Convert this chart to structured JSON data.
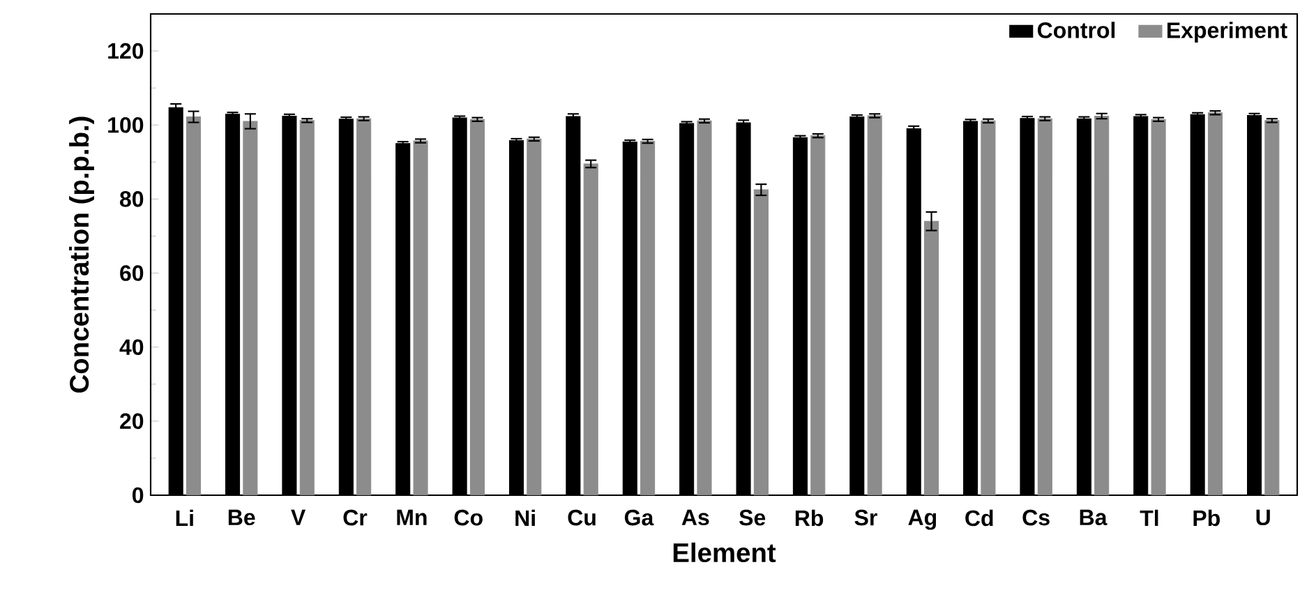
{
  "chart_data": {
    "type": "bar",
    "xlabel": "Element",
    "ylabel": "Concentration (p.p.b.)",
    "categories": [
      "Li",
      "Be",
      "V",
      "Cr",
      "Mn",
      "Co",
      "Ni",
      "Cu",
      "Ga",
      "As",
      "Se",
      "Rb",
      "Sr",
      "Ag",
      "Cd",
      "Cs",
      "Ba",
      "Tl",
      "Pb",
      "U"
    ],
    "series": [
      {
        "name": "Control",
        "color": "#000000",
        "values": [
          104.7,
          102.9,
          102.4,
          101.6,
          95.0,
          101.9,
          95.8,
          102.3,
          95.4,
          100.4,
          100.6,
          96.6,
          102.2,
          99.0,
          101.0,
          101.8,
          101.7,
          102.3,
          102.8,
          102.6
        ],
        "errors": [
          1,
          0.5,
          0.5,
          0.5,
          0.5,
          0.5,
          0.5,
          0.7,
          0.5,
          0.5,
          0.7,
          0.5,
          0.5,
          0.7,
          0.5,
          0.5,
          0.5,
          0.5,
          0.5,
          0.5
        ]
      },
      {
        "name": "Experiment",
        "color": "#8c8c8c",
        "values": [
          102.2,
          101.0,
          101.2,
          101.7,
          95.7,
          101.5,
          96.2,
          89.5,
          95.6,
          101.1,
          82.5,
          97.1,
          102.5,
          74.0,
          101.1,
          101.7,
          102.4,
          101.5,
          103.3,
          101.2
        ],
        "errors": [
          1.5,
          2,
          0.5,
          0.5,
          0.5,
          0.5,
          0.5,
          1,
          0.5,
          0.5,
          1.5,
          0.5,
          0.5,
          2.5,
          0.5,
          0.5,
          0.7,
          0.5,
          0.5,
          0.5
        ]
      }
    ],
    "ylim": [
      0,
      130
    ],
    "yticks": [
      0,
      20,
      40,
      60,
      80,
      100,
      120
    ],
    "legend": "top right"
  }
}
